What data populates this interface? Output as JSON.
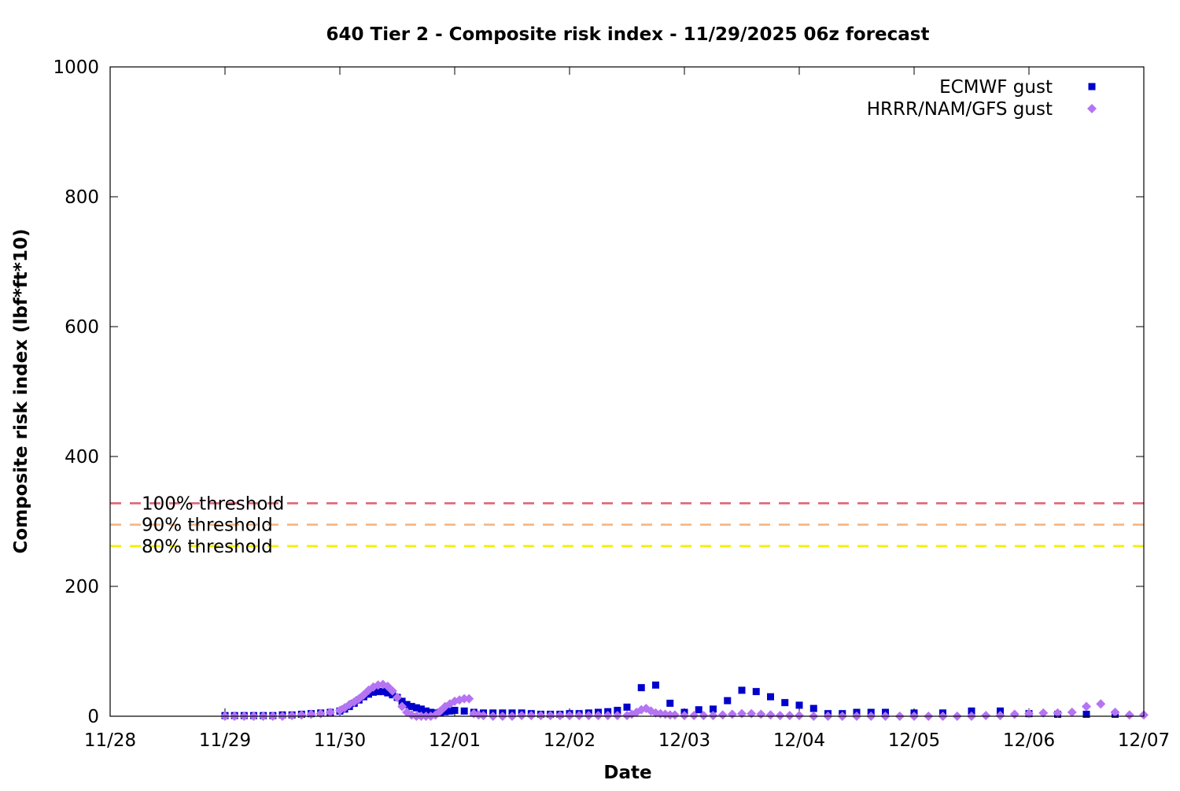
{
  "chart_data": {
    "type": "scatter",
    "title": "640 Tier 2 - Composite risk index - 11/29/2025 06z forecast",
    "xlabel": "Date",
    "ylabel": "Composite risk index (lbf*ft*10)",
    "x_axis": {
      "type": "date",
      "range": [
        "2025-11-28 00:00",
        "2025-12-07 00:00"
      ],
      "tick_labels": [
        "11/28",
        "11/29",
        "11/30",
        "12/01",
        "12/02",
        "12/03",
        "12/04",
        "12/05",
        "12/06",
        "12/07"
      ]
    },
    "y_axis": {
      "range": [
        0,
        1000
      ],
      "ticks": [
        0,
        200,
        400,
        600,
        800,
        1000
      ]
    },
    "grid": false,
    "legend": {
      "position": "top-right"
    },
    "thresholds": [
      {
        "label": "100% threshold",
        "value": 328,
        "color": "#dd6677"
      },
      {
        "label": "90% threshold",
        "value": 295,
        "color": "#f5b27e"
      },
      {
        "label": "80% threshold",
        "value": 262,
        "color": "#f0f000"
      }
    ],
    "series": [
      {
        "name": "ECMWF gust",
        "marker": "square",
        "color": "#0000cc",
        "points": [
          [
            "2025-11-29 00:00",
            1
          ],
          [
            "2025-11-29 02:00",
            1
          ],
          [
            "2025-11-29 04:00",
            1
          ],
          [
            "2025-11-29 06:00",
            1
          ],
          [
            "2025-11-29 08:00",
            1
          ],
          [
            "2025-11-29 10:00",
            1
          ],
          [
            "2025-11-29 12:00",
            2
          ],
          [
            "2025-11-29 14:00",
            2
          ],
          [
            "2025-11-29 16:00",
            3
          ],
          [
            "2025-11-29 18:00",
            4
          ],
          [
            "2025-11-29 20:00",
            5
          ],
          [
            "2025-11-29 22:00",
            6
          ],
          [
            "2025-11-30 00:00",
            8
          ],
          [
            "2025-11-30 01:00",
            11
          ],
          [
            "2025-11-30 02:00",
            15
          ],
          [
            "2025-11-30 03:00",
            20
          ],
          [
            "2025-11-30 04:00",
            25
          ],
          [
            "2025-11-30 05:00",
            30
          ],
          [
            "2025-11-30 06:00",
            34
          ],
          [
            "2025-11-30 07:00",
            37
          ],
          [
            "2025-11-30 08:00",
            38
          ],
          [
            "2025-11-30 09:00",
            38
          ],
          [
            "2025-11-30 10:00",
            36
          ],
          [
            "2025-11-30 11:00",
            33
          ],
          [
            "2025-11-30 12:00",
            29
          ],
          [
            "2025-11-30 13:00",
            23
          ],
          [
            "2025-11-30 14:00",
            18
          ],
          [
            "2025-11-30 15:00",
            15
          ],
          [
            "2025-11-30 16:00",
            13
          ],
          [
            "2025-11-30 17:00",
            11
          ],
          [
            "2025-11-30 18:00",
            8
          ],
          [
            "2025-11-30 19:00",
            6
          ],
          [
            "2025-11-30 20:00",
            5
          ],
          [
            "2025-11-30 21:00",
            6
          ],
          [
            "2025-11-30 22:00",
            7
          ],
          [
            "2025-11-30 23:00",
            8
          ],
          [
            "2025-12-01 00:00",
            9
          ],
          [
            "2025-12-01 02:00",
            8
          ],
          [
            "2025-12-01 04:00",
            6
          ],
          [
            "2025-12-01 06:00",
            5
          ],
          [
            "2025-12-01 08:00",
            5
          ],
          [
            "2025-12-01 10:00",
            5
          ],
          [
            "2025-12-01 12:00",
            5
          ],
          [
            "2025-12-01 14:00",
            5
          ],
          [
            "2025-12-01 16:00",
            4
          ],
          [
            "2025-12-01 18:00",
            3
          ],
          [
            "2025-12-01 20:00",
            3
          ],
          [
            "2025-12-01 22:00",
            3
          ],
          [
            "2025-12-02 00:00",
            4
          ],
          [
            "2025-12-02 02:00",
            4
          ],
          [
            "2025-12-02 04:00",
            5
          ],
          [
            "2025-12-02 06:00",
            6
          ],
          [
            "2025-12-02 08:00",
            7
          ],
          [
            "2025-12-02 10:00",
            9
          ],
          [
            "2025-12-02 12:00",
            14
          ],
          [
            "2025-12-02 15:00",
            44
          ],
          [
            "2025-12-02 18:00",
            48
          ],
          [
            "2025-12-02 21:00",
            20
          ],
          [
            "2025-12-03 00:00",
            6
          ],
          [
            "2025-12-03 03:00",
            10
          ],
          [
            "2025-12-03 06:00",
            11
          ],
          [
            "2025-12-03 09:00",
            24
          ],
          [
            "2025-12-03 12:00",
            40
          ],
          [
            "2025-12-03 15:00",
            38
          ],
          [
            "2025-12-03 18:00",
            30
          ],
          [
            "2025-12-03 21:00",
            21
          ],
          [
            "2025-12-04 00:00",
            17
          ],
          [
            "2025-12-04 03:00",
            12
          ],
          [
            "2025-12-04 06:00",
            4
          ],
          [
            "2025-12-04 09:00",
            4
          ],
          [
            "2025-12-04 12:00",
            6
          ],
          [
            "2025-12-04 15:00",
            6
          ],
          [
            "2025-12-04 18:00",
            6
          ],
          [
            "2025-12-05 00:00",
            5
          ],
          [
            "2025-12-05 06:00",
            5
          ],
          [
            "2025-12-05 12:00",
            8
          ],
          [
            "2025-12-05 18:00",
            8
          ],
          [
            "2025-12-06 00:00",
            4
          ],
          [
            "2025-12-06 06:00",
            3
          ],
          [
            "2025-12-06 12:00",
            3
          ],
          [
            "2025-12-06 18:00",
            3
          ]
        ]
      },
      {
        "name": "HRRR/NAM/GFS gust",
        "marker": "diamond",
        "color": "#b574f2",
        "points": [
          [
            "2025-11-29 00:00",
            0
          ],
          [
            "2025-11-29 02:00",
            0
          ],
          [
            "2025-11-29 04:00",
            0
          ],
          [
            "2025-11-29 06:00",
            0
          ],
          [
            "2025-11-29 08:00",
            0
          ],
          [
            "2025-11-29 10:00",
            0
          ],
          [
            "2025-11-29 12:00",
            0
          ],
          [
            "2025-11-29 14:00",
            1
          ],
          [
            "2025-11-29 16:00",
            2
          ],
          [
            "2025-11-29 18:00",
            3
          ],
          [
            "2025-11-29 20:00",
            4
          ],
          [
            "2025-11-29 22:00",
            6
          ],
          [
            "2025-11-30 00:00",
            9
          ],
          [
            "2025-11-30 01:00",
            13
          ],
          [
            "2025-11-30 02:00",
            18
          ],
          [
            "2025-11-30 03:00",
            22
          ],
          [
            "2025-11-30 04:00",
            27
          ],
          [
            "2025-11-30 05:00",
            33
          ],
          [
            "2025-11-30 06:00",
            40
          ],
          [
            "2025-11-30 07:00",
            45
          ],
          [
            "2025-11-30 08:00",
            48
          ],
          [
            "2025-11-30 09:00",
            49
          ],
          [
            "2025-11-30 10:00",
            46
          ],
          [
            "2025-11-30 11:00",
            39
          ],
          [
            "2025-11-30 12:00",
            29
          ],
          [
            "2025-11-30 13:00",
            15
          ],
          [
            "2025-11-30 14:00",
            6
          ],
          [
            "2025-11-30 15:00",
            2
          ],
          [
            "2025-11-30 16:00",
            0
          ],
          [
            "2025-11-30 17:00",
            0
          ],
          [
            "2025-11-30 18:00",
            0
          ],
          [
            "2025-11-30 19:00",
            0
          ],
          [
            "2025-11-30 20:00",
            2
          ],
          [
            "2025-11-30 21:00",
            8
          ],
          [
            "2025-11-30 22:00",
            15
          ],
          [
            "2025-11-30 23:00",
            19
          ],
          [
            "2025-12-01 00:00",
            23
          ],
          [
            "2025-12-01 01:00",
            25
          ],
          [
            "2025-12-01 02:00",
            27
          ],
          [
            "2025-12-01 03:00",
            27
          ],
          [
            "2025-12-01 04:00",
            4
          ],
          [
            "2025-12-01 05:00",
            2
          ],
          [
            "2025-12-01 06:00",
            1
          ],
          [
            "2025-12-01 08:00",
            0
          ],
          [
            "2025-12-01 10:00",
            0
          ],
          [
            "2025-12-01 12:00",
            0
          ],
          [
            "2025-12-01 14:00",
            1
          ],
          [
            "2025-12-01 16:00",
            1
          ],
          [
            "2025-12-01 18:00",
            1
          ],
          [
            "2025-12-01 20:00",
            1
          ],
          [
            "2025-12-01 22:00",
            1
          ],
          [
            "2025-12-02 00:00",
            1
          ],
          [
            "2025-12-02 02:00",
            1
          ],
          [
            "2025-12-02 04:00",
            1
          ],
          [
            "2025-12-02 06:00",
            1
          ],
          [
            "2025-12-02 08:00",
            1
          ],
          [
            "2025-12-02 10:00",
            1
          ],
          [
            "2025-12-02 12:00",
            1
          ],
          [
            "2025-12-02 13:00",
            3
          ],
          [
            "2025-12-02 14:00",
            6
          ],
          [
            "2025-12-02 15:00",
            10
          ],
          [
            "2025-12-02 16:00",
            12
          ],
          [
            "2025-12-02 17:00",
            8
          ],
          [
            "2025-12-02 18:00",
            5
          ],
          [
            "2025-12-02 19:00",
            4
          ],
          [
            "2025-12-02 20:00",
            3
          ],
          [
            "2025-12-02 21:00",
            2
          ],
          [
            "2025-12-02 22:00",
            2
          ],
          [
            "2025-12-03 00:00",
            1
          ],
          [
            "2025-12-03 02:00",
            1
          ],
          [
            "2025-12-03 04:00",
            1
          ],
          [
            "2025-12-03 06:00",
            1
          ],
          [
            "2025-12-03 08:00",
            2
          ],
          [
            "2025-12-03 10:00",
            3
          ],
          [
            "2025-12-03 12:00",
            4
          ],
          [
            "2025-12-03 14:00",
            4
          ],
          [
            "2025-12-03 16:00",
            3
          ],
          [
            "2025-12-03 18:00",
            2
          ],
          [
            "2025-12-03 20:00",
            1
          ],
          [
            "2025-12-03 22:00",
            1
          ],
          [
            "2025-12-04 00:00",
            1
          ],
          [
            "2025-12-04 03:00",
            0
          ],
          [
            "2025-12-04 06:00",
            0
          ],
          [
            "2025-12-04 09:00",
            0
          ],
          [
            "2025-12-04 12:00",
            0
          ],
          [
            "2025-12-04 15:00",
            0
          ],
          [
            "2025-12-04 18:00",
            0
          ],
          [
            "2025-12-04 21:00",
            0
          ],
          [
            "2025-12-05 00:00",
            0
          ],
          [
            "2025-12-05 03:00",
            0
          ],
          [
            "2025-12-05 06:00",
            0
          ],
          [
            "2025-12-05 09:00",
            0
          ],
          [
            "2025-12-05 12:00",
            0
          ],
          [
            "2025-12-05 15:00",
            1
          ],
          [
            "2025-12-05 18:00",
            1
          ],
          [
            "2025-12-05 21:00",
            3
          ],
          [
            "2025-12-06 00:00",
            4
          ],
          [
            "2025-12-06 03:00",
            5
          ],
          [
            "2025-12-06 06:00",
            5
          ],
          [
            "2025-12-06 09:00",
            6
          ],
          [
            "2025-12-06 12:00",
            15
          ],
          [
            "2025-12-06 15:00",
            19
          ],
          [
            "2025-12-06 18:00",
            6
          ],
          [
            "2025-12-06 21:00",
            2
          ],
          [
            "2025-12-07 00:00",
            2
          ]
        ]
      }
    ]
  }
}
